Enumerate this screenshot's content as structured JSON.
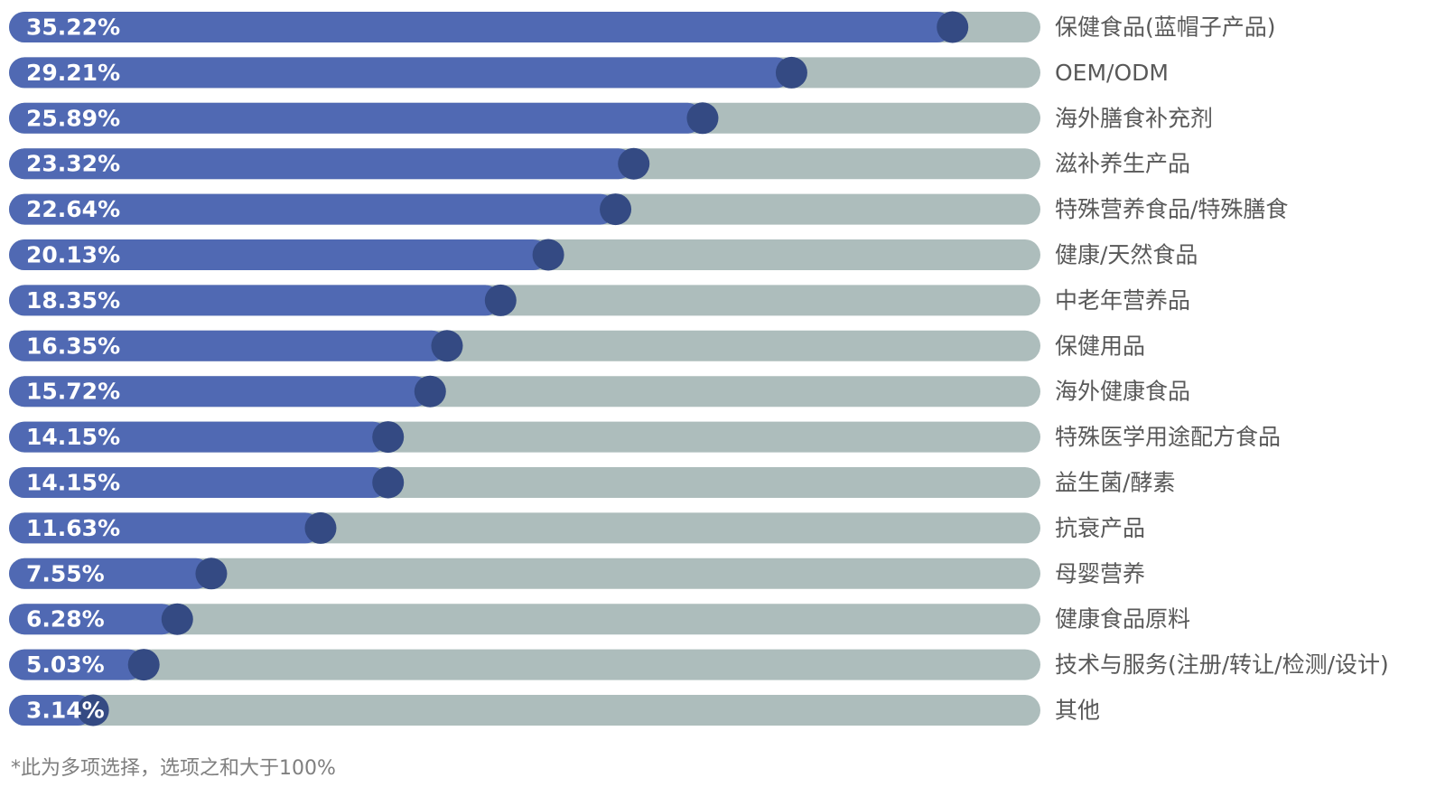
{
  "chart_data": {
    "type": "bar",
    "orientation": "horizontal",
    "categories": [
      "保健食品(蓝帽子产品)",
      "OEM/ODM",
      "海外膳食补充剂",
      "滋补养生产品",
      "特殊营养食品/特殊膳食",
      "健康/天然食品",
      "中老年营养品",
      "保健用品",
      "海外健康食品",
      "特殊医学用途配方食品",
      "益生菌/酵素",
      "抗衰产品",
      "母婴营养",
      "健康食品原料",
      "技术与服务(注册/转让/检测/设计)",
      "其他"
    ],
    "values": [
      35.22,
      29.21,
      25.89,
      23.32,
      22.64,
      20.13,
      18.35,
      16.35,
      15.72,
      14.15,
      14.15,
      11.63,
      7.55,
      6.28,
      5.03,
      3.14
    ],
    "value_labels": [
      "35.22%",
      "29.21%",
      "25.89%",
      "23.32%",
      "22.64%",
      "20.13%",
      "18.35%",
      "16.35%",
      "15.72%",
      "14.15%",
      "14.15%",
      "11.63%",
      "7.55%",
      "6.28%",
      "5.03%",
      "3.14%"
    ],
    "xlim": [
      0,
      38.5
    ],
    "grid": false,
    "legend": "none",
    "colors": {
      "bar": "#5069b3",
      "track": "#adbdbc",
      "knob": "#344a83",
      "value_text": "#ffffff",
      "category_text": "#595959"
    }
  },
  "footnote": "*此为多项选择，选项之和大于100%"
}
